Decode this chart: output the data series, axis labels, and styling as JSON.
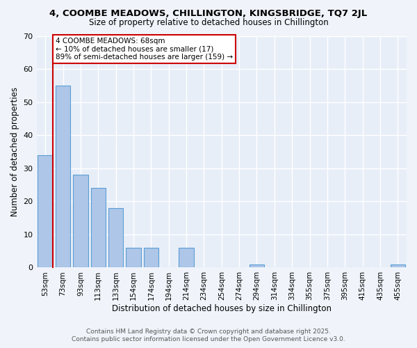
{
  "title_line1": "4, COOMBE MEADOWS, CHILLINGTON, KINGSBRIDGE, TQ7 2JL",
  "title_line2": "Size of property relative to detached houses in Chillington",
  "xlabel": "Distribution of detached houses by size in Chillington",
  "ylabel": "Number of detached properties",
  "categories": [
    "53sqm",
    "73sqm",
    "93sqm",
    "113sqm",
    "133sqm",
    "154sqm",
    "174sqm",
    "194sqm",
    "214sqm",
    "234sqm",
    "254sqm",
    "274sqm",
    "294sqm",
    "314sqm",
    "334sqm",
    "355sqm",
    "375sqm",
    "395sqm",
    "415sqm",
    "435sqm",
    "455sqm"
  ],
  "values": [
    34,
    55,
    28,
    24,
    18,
    6,
    6,
    0,
    6,
    0,
    0,
    0,
    1,
    0,
    0,
    0,
    0,
    0,
    0,
    0,
    1
  ],
  "bar_color": "#aec6e8",
  "bar_edge_color": "#5a9fd4",
  "background_color": "#e8eef8",
  "fig_background_color": "#f0f4fa",
  "grid_color": "#ffffff",
  "vline_color": "#cc0000",
  "annotation_line1": "4 COOMBE MEADOWS: 68sqm",
  "annotation_line2": "← 10% of detached houses are smaller (17)",
  "annotation_line3": "89% of semi-detached houses are larger (159) →",
  "annotation_box_color": "#cc0000",
  "ylim": [
    0,
    70
  ],
  "yticks": [
    0,
    10,
    20,
    30,
    40,
    50,
    60,
    70
  ],
  "footer_line1": "Contains HM Land Registry data © Crown copyright and database right 2025.",
  "footer_line2": "Contains public sector information licensed under the Open Government Licence v3.0."
}
